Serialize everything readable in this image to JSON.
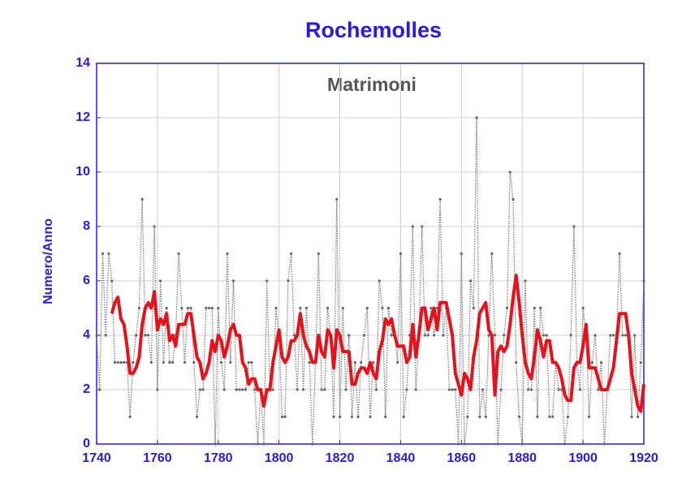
{
  "chart_data": {
    "type": "line",
    "title": "Rochemolles",
    "annotation": "Matrimoni",
    "ylabel": "Numero/Anno",
    "x": [
      1740,
      1741,
      1742,
      1743,
      1744,
      1745,
      1746,
      1747,
      1748,
      1749,
      1750,
      1751,
      1752,
      1753,
      1754,
      1755,
      1756,
      1757,
      1758,
      1759,
      1760,
      1761,
      1762,
      1763,
      1764,
      1765,
      1766,
      1767,
      1768,
      1769,
      1770,
      1771,
      1772,
      1773,
      1774,
      1775,
      1776,
      1777,
      1778,
      1779,
      1780,
      1781,
      1782,
      1783,
      1784,
      1785,
      1786,
      1787,
      1788,
      1789,
      1790,
      1791,
      1792,
      1793,
      1794,
      1795,
      1796,
      1797,
      1798,
      1799,
      1800,
      1801,
      1802,
      1803,
      1804,
      1805,
      1806,
      1807,
      1808,
      1809,
      1810,
      1811,
      1812,
      1813,
      1814,
      1815,
      1816,
      1817,
      1818,
      1819,
      1820,
      1821,
      1822,
      1823,
      1824,
      1825,
      1826,
      1827,
      1828,
      1829,
      1830,
      1831,
      1832,
      1833,
      1834,
      1835,
      1836,
      1837,
      1838,
      1839,
      1840,
      1841,
      1842,
      1843,
      1844,
      1845,
      1846,
      1847,
      1848,
      1849,
      1850,
      1851,
      1852,
      1853,
      1854,
      1855,
      1856,
      1857,
      1858,
      1859,
      1860,
      1861,
      1862,
      1863,
      1864,
      1865,
      1866,
      1867,
      1868,
      1869,
      1870,
      1871,
      1872,
      1873,
      1874,
      1875,
      1876,
      1877,
      1878,
      1879,
      1880,
      1881,
      1882,
      1883,
      1884,
      1885,
      1886,
      1887,
      1888,
      1889,
      1890,
      1891,
      1892,
      1893,
      1894,
      1895,
      1896,
      1897,
      1898,
      1899,
      1900,
      1901,
      1902,
      1903,
      1904,
      1905,
      1906,
      1907,
      1908,
      1909,
      1910,
      1911,
      1912,
      1913,
      1914,
      1915,
      1916,
      1917,
      1918,
      1919,
      1920
    ],
    "series": [
      {
        "color": "#777777",
        "style": "dotted",
        "markers": true,
        "values": [
          4,
          2,
          7,
          4,
          7,
          6,
          3,
          3,
          3,
          3,
          3,
          1,
          3,
          4,
          5,
          9,
          4,
          4,
          3,
          8,
          2,
          6,
          3,
          5,
          3,
          3,
          4,
          7,
          5,
          3,
          5,
          5,
          3,
          1,
          2,
          2,
          5,
          5,
          5,
          0,
          5,
          3,
          2,
          7,
          3,
          6,
          2,
          2,
          2,
          2,
          3,
          3,
          2,
          0,
          2,
          0,
          6,
          2,
          2,
          5,
          4,
          1,
          1,
          6,
          7,
          4,
          2,
          5,
          2,
          5,
          3,
          0,
          3,
          7,
          2,
          2,
          5,
          4,
          1,
          9,
          1,
          5,
          2,
          4,
          1,
          3,
          1,
          3,
          4,
          5,
          1,
          3,
          2,
          6,
          5,
          1,
          5,
          4,
          4,
          3,
          7,
          1,
          2,
          4,
          8,
          2,
          4,
          8,
          4,
          4,
          5,
          4,
          5,
          9,
          4,
          5,
          2,
          2,
          2,
          0,
          7,
          0,
          1,
          6,
          5,
          12,
          1,
          2,
          1,
          4,
          7,
          4,
          0,
          2,
          4,
          5,
          10,
          9,
          3,
          1,
          0,
          6,
          2,
          2,
          5,
          1,
          5,
          4,
          4,
          1,
          1,
          3,
          2,
          2,
          0,
          1,
          4,
          8,
          3,
          2,
          5,
          4,
          1,
          3,
          4,
          2,
          3,
          0,
          2,
          4,
          4,
          4,
          7,
          4,
          4,
          4,
          1,
          4,
          1,
          3,
          6
        ]
      },
      {
        "color": "#e8101a",
        "style": "solid",
        "markers": false,
        "values": [
          null,
          null,
          null,
          null,
          null,
          4.8,
          5.2,
          5.4,
          4.6,
          4.4,
          3.6,
          2.6,
          2.6,
          2.8,
          3.2,
          4.4,
          5,
          5.2,
          5,
          5.6,
          4.2,
          4.6,
          4.4,
          4.8,
          3.8,
          4,
          3.6,
          4.4,
          4.4,
          4.4,
          4.8,
          4.8,
          4,
          3.2,
          3,
          2.4,
          2.6,
          3,
          3.8,
          3.4,
          4,
          3.8,
          3.2,
          3.6,
          4.2,
          4.4,
          4,
          4,
          3,
          2.8,
          2.2,
          2.4,
          2.4,
          2,
          2,
          1.4,
          2,
          2,
          3,
          3.6,
          4.2,
          3.2,
          3,
          3.2,
          3.8,
          3.8,
          4,
          4.8,
          4,
          3.6,
          3.4,
          3,
          3,
          4,
          3.4,
          3.2,
          4.2,
          4,
          2.8,
          4.2,
          4,
          3.4,
          3.4,
          3.4,
          2.2,
          2.2,
          2.6,
          2.8,
          2.8,
          2.6,
          3,
          2.6,
          2.4,
          3.4,
          3.8,
          4.6,
          4.4,
          4.6,
          4,
          3.6,
          3.6,
          3.6,
          3,
          3.2,
          4.4,
          3.2,
          4,
          5,
          5,
          4.2,
          4.6,
          5,
          4.2,
          5.2,
          5.2,
          5.2,
          4.6,
          4,
          2.6,
          2.2,
          1.8,
          2.6,
          2.4,
          2,
          3.2,
          3.8,
          4.8,
          5,
          5.2,
          4.2,
          4,
          1.8,
          3.4,
          3.6,
          3.4,
          3.6,
          4.4,
          5.4,
          6.2,
          5.2,
          4,
          3,
          2.6,
          2.4,
          3.2,
          4.2,
          3.8,
          3.2,
          3.8,
          3.8,
          3,
          3,
          2.8,
          2.4,
          1.8,
          1.6,
          1.6,
          2.8,
          3,
          3,
          3.6,
          4.4,
          2.8,
          2.8,
          2.8,
          2.4,
          2,
          2,
          2,
          2.4,
          2.8,
          3.8,
          4.8,
          4.8,
          4.8,
          4,
          2.6,
          2,
          1.4,
          1.2,
          2.2
        ]
      }
    ],
    "xlim": [
      1740,
      1920
    ],
    "xticks": [
      1740,
      1760,
      1780,
      1800,
      1820,
      1840,
      1860,
      1880,
      1900,
      1920
    ],
    "ylim": [
      0,
      14
    ],
    "yticks": [
      0,
      2,
      4,
      6,
      8,
      10,
      12,
      14
    ],
    "grid": true
  }
}
